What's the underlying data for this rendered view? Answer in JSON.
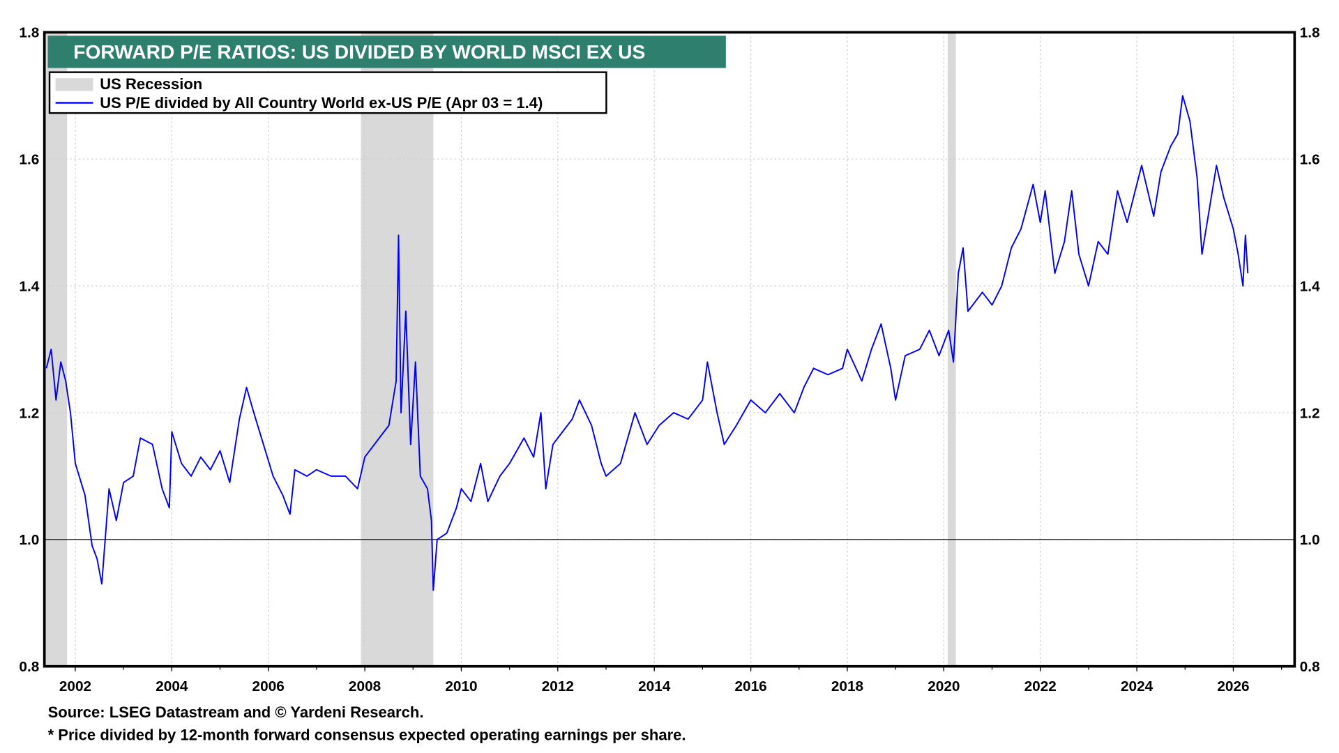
{
  "chart_data": {
    "type": "line",
    "title": "FORWARD P/E RATIOS: US DIVIDED BY WORLD MSCI EX US",
    "xlabel": "",
    "ylabel": "",
    "xlim": [
      2001.36,
      2027.27
    ],
    "ylim": [
      0.8,
      1.8
    ],
    "x_ticks": [
      "2002",
      "2004",
      "2006",
      "2008",
      "2010",
      "2012",
      "2014",
      "2016",
      "2018",
      "2020",
      "2022",
      "2024",
      "2026"
    ],
    "y_ticks": [
      "0.8",
      "1.0",
      "1.2",
      "1.4",
      "1.6",
      "1.8"
    ],
    "grid": true,
    "reference_line": 1.0,
    "legend_placement": "top-left",
    "colors": {
      "series": "#0000ff",
      "recession": "#d9d9d9",
      "title_bg": "#2f7f6f"
    },
    "recessions": [
      [
        2001.2,
        2001.83
      ],
      [
        2007.92,
        2009.42
      ],
      [
        2020.08,
        2020.25
      ]
    ],
    "legend": {
      "recession_label": "US Recession",
      "series_label": "US P/E divided by All Country World ex-US P/E (Apr 03 = 1.4)"
    },
    "series": [
      {
        "name": "US P/E divided by All Country World ex-US P/E (Apr 03 = 1.4)",
        "x": [
          2001.4,
          2001.5,
          2001.6,
          2001.7,
          2001.8,
          2001.9,
          2002.0,
          2002.2,
          2002.35,
          2002.45,
          2002.55,
          2002.7,
          2002.85,
          2003.0,
          2003.2,
          2003.35,
          2003.6,
          2003.8,
          2003.95,
          2004.0,
          2004.2,
          2004.4,
          2004.6,
          2004.8,
          2005.0,
          2005.2,
          2005.4,
          2005.55,
          2005.7,
          2005.9,
          2006.1,
          2006.3,
          2006.45,
          2006.55,
          2006.8,
          2007.0,
          2007.3,
          2007.6,
          2007.85,
          2008.0,
          2008.3,
          2008.5,
          2008.65,
          2008.7,
          2008.75,
          2008.85,
          2008.95,
          2009.05,
          2009.15,
          2009.3,
          2009.38,
          2009.42,
          2009.5,
          2009.7,
          2009.9,
          2010.0,
          2010.2,
          2010.4,
          2010.55,
          2010.8,
          2011.0,
          2011.3,
          2011.5,
          2011.65,
          2011.75,
          2011.9,
          2012.1,
          2012.3,
          2012.45,
          2012.7,
          2012.9,
          2013.0,
          2013.3,
          2013.6,
          2013.85,
          2014.1,
          2014.4,
          2014.7,
          2015.0,
          2015.1,
          2015.3,
          2015.45,
          2015.7,
          2016.0,
          2016.3,
          2016.6,
          2016.9,
          2017.1,
          2017.3,
          2017.6,
          2017.9,
          2018.0,
          2018.3,
          2018.5,
          2018.7,
          2018.9,
          2019.0,
          2019.2,
          2019.5,
          2019.7,
          2019.9,
          2020.1,
          2020.2,
          2020.3,
          2020.4,
          2020.5,
          2020.8,
          2021.0,
          2021.2,
          2021.4,
          2021.6,
          2021.85,
          2022.0,
          2022.1,
          2022.3,
          2022.5,
          2022.65,
          2022.8,
          2023.0,
          2023.2,
          2023.4,
          2023.6,
          2023.8,
          2024.0,
          2024.1,
          2024.35,
          2024.5,
          2024.7,
          2024.85,
          2024.95,
          2025.1,
          2025.25,
          2025.35,
          2025.5,
          2025.65,
          2025.8,
          2026.0,
          2026.1,
          2026.2,
          2026.25,
          2026.3
        ],
        "y": [
          1.27,
          1.3,
          1.22,
          1.28,
          1.25,
          1.2,
          1.12,
          1.07,
          0.99,
          0.97,
          0.93,
          1.08,
          1.03,
          1.09,
          1.1,
          1.16,
          1.15,
          1.08,
          1.05,
          1.17,
          1.12,
          1.1,
          1.13,
          1.11,
          1.14,
          1.09,
          1.19,
          1.24,
          1.2,
          1.15,
          1.1,
          1.07,
          1.04,
          1.11,
          1.1,
          1.11,
          1.1,
          1.1,
          1.08,
          1.13,
          1.16,
          1.18,
          1.25,
          1.48,
          1.2,
          1.36,
          1.15,
          1.28,
          1.1,
          1.08,
          1.03,
          0.92,
          1.0,
          1.01,
          1.05,
          1.08,
          1.06,
          1.12,
          1.06,
          1.1,
          1.12,
          1.16,
          1.13,
          1.2,
          1.08,
          1.15,
          1.17,
          1.19,
          1.22,
          1.18,
          1.12,
          1.1,
          1.12,
          1.2,
          1.15,
          1.18,
          1.2,
          1.19,
          1.22,
          1.28,
          1.2,
          1.15,
          1.18,
          1.22,
          1.2,
          1.23,
          1.2,
          1.24,
          1.27,
          1.26,
          1.27,
          1.3,
          1.25,
          1.3,
          1.34,
          1.27,
          1.22,
          1.29,
          1.3,
          1.33,
          1.29,
          1.33,
          1.28,
          1.42,
          1.46,
          1.36,
          1.39,
          1.37,
          1.4,
          1.46,
          1.49,
          1.56,
          1.5,
          1.55,
          1.42,
          1.47,
          1.55,
          1.45,
          1.4,
          1.47,
          1.45,
          1.55,
          1.5,
          1.56,
          1.59,
          1.51,
          1.58,
          1.62,
          1.64,
          1.7,
          1.66,
          1.57,
          1.45,
          1.52,
          1.59,
          1.54,
          1.49,
          1.45,
          1.4,
          1.48,
          1.42
        ]
      }
    ]
  },
  "footer": {
    "source": "Source: LSEG Datastream and © Yardeni Research.",
    "note": "* Price divided by 12-month forward consensus expected operating earnings per share."
  }
}
